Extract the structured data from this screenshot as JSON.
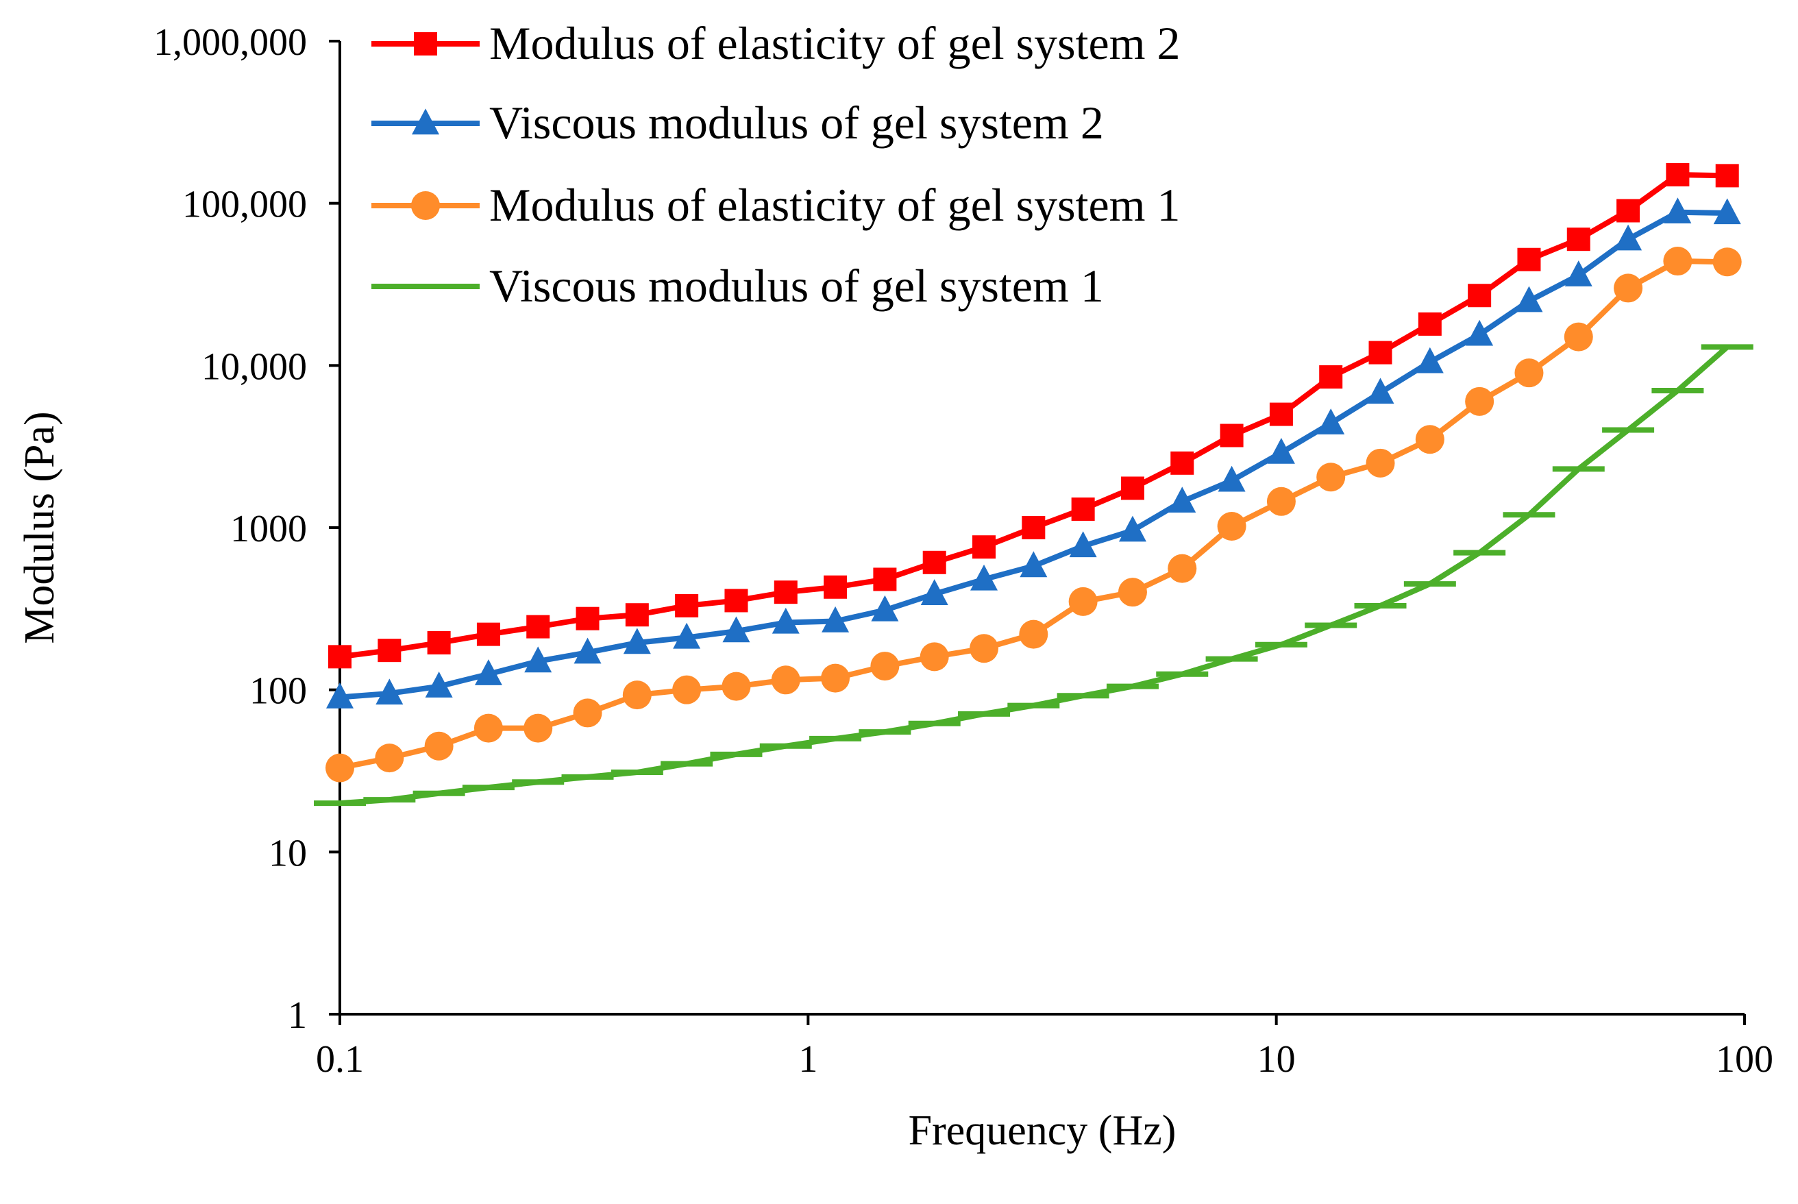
{
  "chart_data": {
    "type": "line",
    "title": "",
    "xlabel": "Frequency (Hz)",
    "ylabel": "Modulus (Pa)",
    "xscale": "log",
    "yscale": "log",
    "xlim": [
      0.1,
      100
    ],
    "ylim": [
      1,
      1000000
    ],
    "grid": false,
    "legend_position": "top-left",
    "x_ticks": [
      {
        "value": 0.1,
        "label": "0.1"
      },
      {
        "value": 1,
        "label": "1"
      },
      {
        "value": 10,
        "label": "10"
      },
      {
        "value": 100,
        "label": "100"
      }
    ],
    "y_ticks": [
      {
        "value": 1,
        "label": "1"
      },
      {
        "value": 10,
        "label": "10"
      },
      {
        "value": 100,
        "label": "100"
      },
      {
        "value": 1000,
        "label": "1000"
      },
      {
        "value": 10000,
        "label": "10,000"
      },
      {
        "value": 100000,
        "label": "100,000"
      },
      {
        "value": 1000000,
        "label": "1,000,000"
      }
    ],
    "x": [
      0.1,
      0.1276,
      0.1628,
      0.2077,
      0.265,
      0.3381,
      0.4314,
      0.5504,
      0.7023,
      0.8961,
      1.1433,
      1.4588,
      1.8613,
      2.3749,
      3.0301,
      3.8662,
      4.933,
      6.294,
      8.031,
      10.247,
      13.074,
      16.681,
      21.284,
      27.157,
      34.65,
      44.21,
      56.41,
      71.97,
      91.83
    ],
    "series": [
      {
        "name": "Modulus of elasticity of gel system 2",
        "color": "#ff0000",
        "marker": "square",
        "values": [
          160,
          175,
          195,
          220,
          245,
          275,
          290,
          330,
          355,
          400,
          430,
          480,
          610,
          760,
          1000,
          1300,
          1750,
          2500,
          3700,
          5000,
          8500,
          12000,
          18000,
          27000,
          45000,
          60000,
          90000,
          150000,
          148000
        ]
      },
      {
        "name": "Viscous modulus of gel system 2",
        "color": "#1f6fc5",
        "marker": "triangle",
        "values": [
          90,
          95,
          105,
          125,
          150,
          170,
          195,
          210,
          230,
          260,
          265,
          310,
          390,
          480,
          580,
          770,
          960,
          1450,
          1950,
          2900,
          4400,
          6800,
          10500,
          15500,
          25000,
          36000,
          60000,
          88000,
          87000
        ]
      },
      {
        "name": "Modulus of elasticity of gel system 1",
        "color": "#ff8c2a",
        "marker": "circle",
        "values": [
          33,
          38,
          45,
          58,
          58,
          72,
          93,
          100,
          105,
          115,
          118,
          140,
          160,
          180,
          220,
          350,
          400,
          560,
          1020,
          1450,
          2050,
          2500,
          3500,
          6000,
          9000,
          15000,
          30000,
          44000,
          43500
        ]
      },
      {
        "name": "Viscous modulus of gel system 1",
        "color": "#4caf2a",
        "marker": "none",
        "values": [
          20,
          21,
          23,
          25,
          27,
          29,
          31,
          35,
          40,
          45,
          50,
          55,
          62,
          71,
          80,
          92,
          105,
          125,
          155,
          190,
          250,
          330,
          450,
          700,
          1200,
          2300,
          4000,
          7000,
          13000
        ]
      }
    ],
    "legend": [
      "Modulus of elasticity of gel system 2",
      "Viscous modulus of gel system 2",
      "Modulus of elasticity of gel system 1",
      "Viscous modulus of gel system 1"
    ]
  }
}
